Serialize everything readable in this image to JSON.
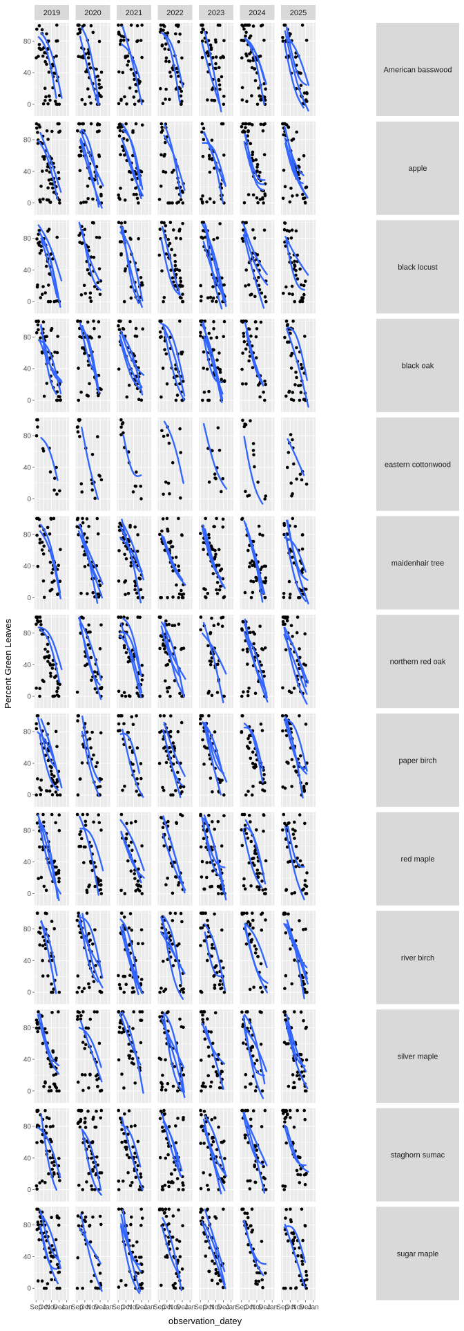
{
  "chart_data": {
    "type": "scatter",
    "facet_cols": [
      "2019",
      "2020",
      "2021",
      "2022",
      "2023",
      "2024",
      "2025"
    ],
    "facet_rows": [
      "American basswood",
      "apple",
      "black locust",
      "black oak",
      "eastern cottonwood",
      "maidenhair tree",
      "northern red oak",
      "paper birch",
      "red maple",
      "river birch",
      "silver maple",
      "staghorn sumac",
      "sugar maple"
    ],
    "xlabel": "observation_datey",
    "ylabel": "Percent Green Leaves",
    "x_ticks": [
      "Sep",
      "Oct",
      "Nov",
      "Dec",
      "Jan"
    ],
    "y_ticks": [
      0,
      40,
      80
    ],
    "xlim_month": [
      8.8,
      13.3
    ],
    "ylim": [
      -15,
      103
    ],
    "point_color": "#000000",
    "line_color": "#3366ff",
    "panel_bg": "#ebebeb",
    "strip_bg": "#d9d9d9",
    "series_note": "points are individual observations; blue curves are smoothed trends per tree; x in month (9=Sep ... 13=Jan)"
  }
}
